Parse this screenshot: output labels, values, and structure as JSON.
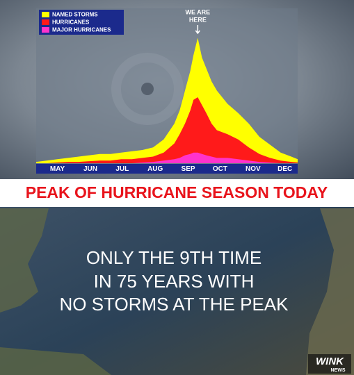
{
  "chart_data": {
    "type": "area",
    "x": [
      -20,
      -10,
      0,
      10,
      20,
      30,
      40,
      50,
      60,
      70,
      80,
      90,
      100,
      110,
      115,
      120,
      125,
      128,
      132,
      136,
      140,
      145,
      150,
      160,
      170,
      180,
      190,
      200,
      210,
      220,
      226
    ],
    "series": [
      {
        "name": "NAMED STORMS",
        "color": "#ffff00",
        "values": [
          1,
          2,
          3,
          4,
          5,
          6,
          7,
          7,
          8,
          9,
          10,
          12,
          18,
          30,
          40,
          55,
          70,
          82,
          95,
          80,
          72,
          62,
          55,
          45,
          38,
          30,
          20,
          14,
          8,
          5,
          3
        ]
      },
      {
        "name": "HURRICANES",
        "color": "#ff1a1a",
        "values": [
          0,
          0,
          0.5,
          1,
          1,
          1.5,
          2,
          2,
          3,
          3,
          4,
          5,
          8,
          15,
          22,
          30,
          40,
          48,
          50,
          44,
          38,
          30,
          25,
          22,
          18,
          12,
          7,
          4,
          2,
          1,
          0.5
        ]
      },
      {
        "name": "MAJOR HURRICANES",
        "color": "#ff33cc",
        "values": [
          0,
          0,
          0,
          0,
          0,
          0,
          0,
          0,
          0,
          0,
          0.5,
          1,
          2,
          3,
          4,
          6,
          7,
          8,
          8,
          7,
          6,
          5,
          4,
          4,
          3,
          2,
          1,
          0.5,
          0,
          0,
          0
        ]
      }
    ],
    "xlim": [
      -20,
      226
    ],
    "ylim": [
      0,
      100
    ],
    "xticks": [
      {
        "value": 0,
        "label": "MAY"
      },
      {
        "value": 31,
        "label": "JUN"
      },
      {
        "value": 61,
        "label": "JUL"
      },
      {
        "value": 92,
        "label": "AUG"
      },
      {
        "value": 123,
        "label": "SEP"
      },
      {
        "value": 153,
        "label": "OCT"
      },
      {
        "value": 184,
        "label": "NOV"
      },
      {
        "value": 214,
        "label": "DEC"
      }
    ],
    "annotation": {
      "lines": [
        "WE ARE",
        "HERE"
      ],
      "x": 132
    },
    "legend": "upper left"
  },
  "banner": "PEAK OF HURRICANE SEASON TODAY",
  "caption": [
    "ONLY THE 9TH TIME",
    "IN 75 YEARS WITH",
    "NO STORMS AT THE PEAK"
  ],
  "logo": {
    "name": "WINK",
    "sub": "NEWS"
  }
}
